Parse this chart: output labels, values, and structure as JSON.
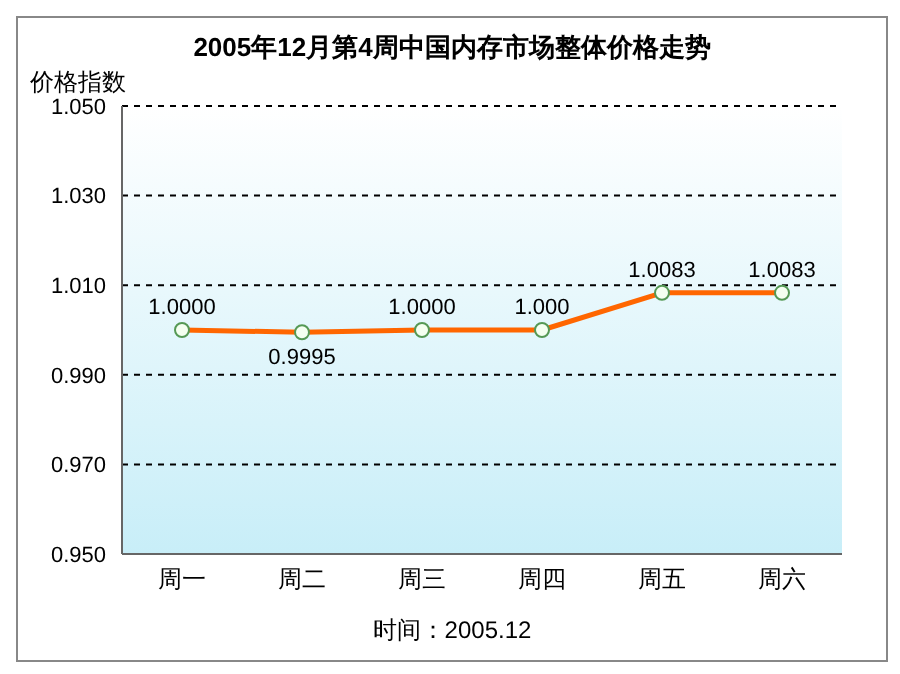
{
  "chart_data": {
    "type": "line",
    "title": "2005年12月第4周中国内存市场整体价格走势",
    "ylabel": "价格指数",
    "categories": [
      "周一",
      "周二",
      "周三",
      "周四",
      "周五",
      "周六"
    ],
    "series": [
      {
        "color": "#ff6600",
        "values": [
          1.0,
          0.9995,
          1.0,
          1.0,
          1.0083,
          1.0083
        ],
        "value_labels": [
          "1.0000",
          "0.9995",
          "1.0000",
          "1.000",
          "1.0083",
          "1.0083"
        ]
      }
    ],
    "ylim": [
      0.95,
      1.05
    ],
    "yticks": [
      {
        "value": 0.95,
        "label": "0.950"
      },
      {
        "value": 0.97,
        "label": "0.970"
      },
      {
        "value": 0.99,
        "label": "0.990"
      },
      {
        "value": 1.01,
        "label": "1.010"
      },
      {
        "value": 1.03,
        "label": "1.030"
      },
      {
        "value": 1.05,
        "label": "1.050"
      }
    ],
    "grid": "y",
    "marker": "circle",
    "line_style": "solid",
    "legend": false,
    "annotations": [
      "时间：2005.12"
    ]
  }
}
